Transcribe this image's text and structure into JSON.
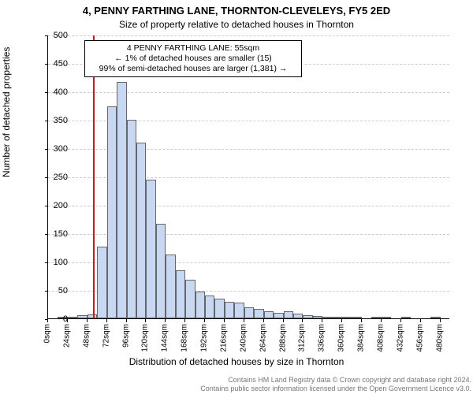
{
  "title_line1": "4, PENNY FARTHING LANE, THORNTON-CLEVELEYS, FY5 2ED",
  "title_line2": "Size of property relative to detached houses in Thornton",
  "ylabel": "Number of detached properties",
  "xlabel": "Distribution of detached houses by size in Thornton",
  "footer1": "Contains HM Land Registry data © Crown copyright and database right 2024.",
  "footer2": "Contains public sector information licensed under the Open Government Licence v3.0.",
  "chart": {
    "type": "histogram",
    "background_color": "#ffffff",
    "grid_color": "#cccccc",
    "bar_fill": "#c9d8f2",
    "bar_border": "#666666",
    "ref_line_color": "#dd1111",
    "ref_line_x_value": 55,
    "ylim": [
      0,
      500
    ],
    "ytick_step": 50,
    "x_min": 0,
    "x_max": 492,
    "x_tick_step": 24,
    "x_tick_suffix": "sqm",
    "bin_width": 12,
    "values": [
      0,
      2,
      3,
      6,
      7,
      126,
      374,
      417,
      350,
      310,
      244,
      166,
      112,
      85,
      68,
      47,
      40,
      35,
      29,
      28,
      20,
      16,
      12,
      10,
      13,
      9,
      6,
      4,
      3,
      2,
      2,
      2,
      0,
      1,
      1,
      0,
      1,
      0,
      0,
      1,
      0
    ],
    "title_fontsize": 13,
    "subtitle_fontsize": 12,
    "label_fontsize": 12,
    "tick_fontsize": 11,
    "annot_fontsize": 10.5
  },
  "annotation": {
    "line1": "4 PENNY FARTHING LANE: 55sqm",
    "line2": "← 1% of detached houses are smaller (15)",
    "line3": "99% of semi-detached houses are larger (1,381) →"
  }
}
